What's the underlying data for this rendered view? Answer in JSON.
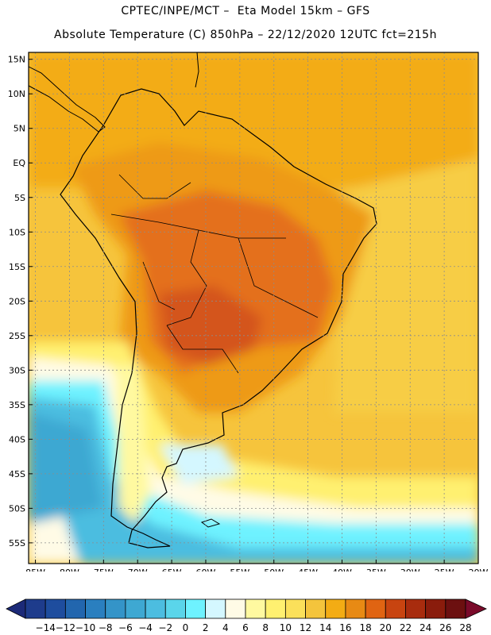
{
  "header": {
    "line1": "CPTEC/INPE/MCT –  Eta Model 15km – GFS",
    "line2": "Absolute Temperature (C) 850hPa – 22/12/2020 12UTC fct=215h"
  },
  "map": {
    "lat_labels": [
      "15N",
      "10N",
      "5N",
      "EQ",
      "5S",
      "10S",
      "15S",
      "20S",
      "25S",
      "30S",
      "35S",
      "40S",
      "45S",
      "50S",
      "55S"
    ],
    "lon_labels": [
      "85W",
      "80W",
      "75W",
      "70W",
      "65W",
      "60W",
      "55W",
      "50W",
      "45W",
      "40W",
      "35W",
      "30W",
      "25W",
      "20W"
    ],
    "lat_range": [
      -58,
      16
    ],
    "lon_range": [
      -86,
      -20
    ],
    "grid": "dotted",
    "colors": {
      "frame": "#000000",
      "coast": "#000000",
      "grid": "#8c8c8c"
    }
  },
  "colorbar": {
    "labels": [
      "-14",
      "-12",
      "-10",
      "-8",
      "-6",
      "-4",
      "-2",
      "0",
      "2",
      "4",
      "6",
      "8",
      "10",
      "12",
      "14",
      "16",
      "18",
      "20",
      "22",
      "24",
      "26",
      "28"
    ],
    "colors": [
      "#1e3c8c",
      "#1e4d9e",
      "#2266ae",
      "#2a7fbf",
      "#3494c8",
      "#3ea8d2",
      "#4cbde0",
      "#5ad5ea",
      "#6ef2ff",
      "#d4f7ff",
      "#fffbe6",
      "#fff9a0",
      "#fff070",
      "#fbe05a",
      "#f4c43c",
      "#f3ac14",
      "#e88a14",
      "#e06412",
      "#c84410",
      "#a82c0e",
      "#8a1c0c",
      "#6c1010"
    ],
    "underflow_color": "#1c2a78",
    "overflow_color": "#7a0a2a"
  }
}
